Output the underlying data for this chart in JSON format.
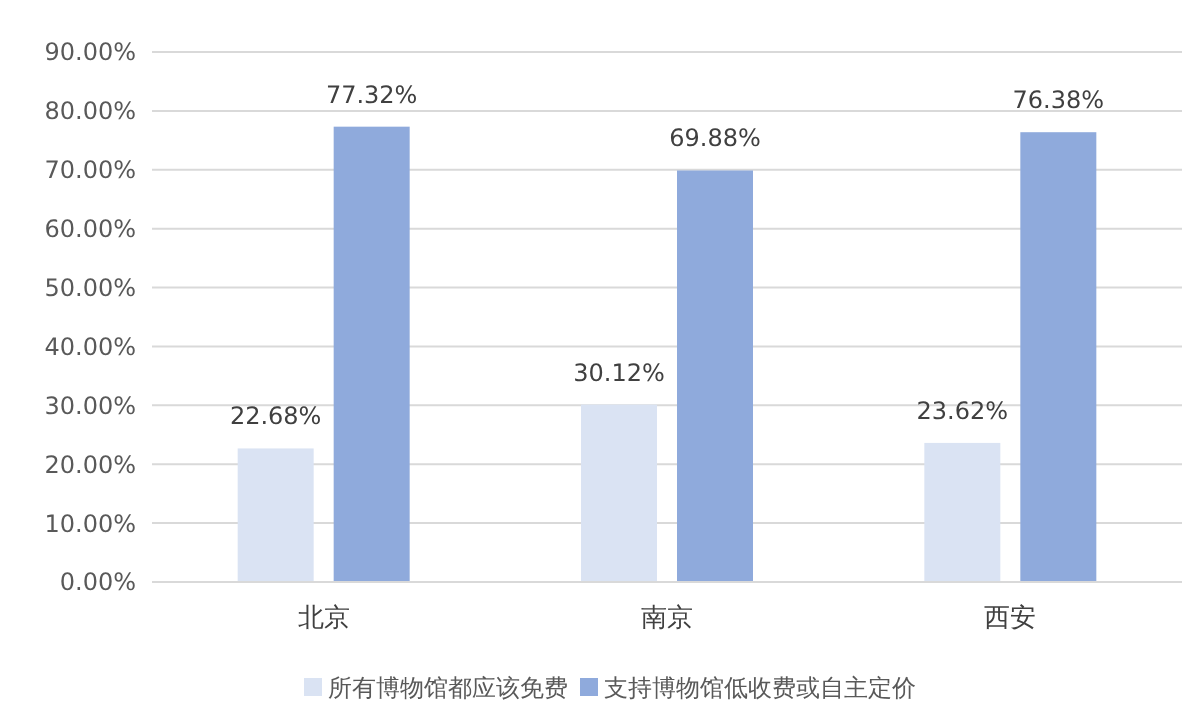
{
  "chart_data": {
    "type": "bar",
    "categories": [
      "北京",
      "南京",
      "西安"
    ],
    "series": [
      {
        "name": "所有博物馆都应该免费",
        "color": "#dae3f3",
        "values": [
          22.68,
          30.12,
          23.62
        ],
        "value_labels": [
          "22.68%",
          "30.12%",
          "23.62%"
        ]
      },
      {
        "name": "支持博物馆低收费或自主定价",
        "color": "#8faadc",
        "values": [
          77.32,
          69.88,
          76.38
        ],
        "value_labels": [
          "77.32%",
          "69.88%",
          "76.38%"
        ]
      }
    ],
    "ylim": [
      0,
      90
    ],
    "yticks": [
      {
        "value": 0,
        "label": "0.00%"
      },
      {
        "value": 10,
        "label": "10.00%"
      },
      {
        "value": 20,
        "label": "20.00%"
      },
      {
        "value": 30,
        "label": "30.00%"
      },
      {
        "value": 40,
        "label": "40.00%"
      },
      {
        "value": 50,
        "label": "50.00%"
      },
      {
        "value": 60,
        "label": "60.00%"
      },
      {
        "value": 70,
        "label": "70.00%"
      },
      {
        "value": 80,
        "label": "80.00%"
      },
      {
        "value": 90,
        "label": "90.00%"
      }
    ],
    "grid": "y",
    "legend": "bottom"
  }
}
